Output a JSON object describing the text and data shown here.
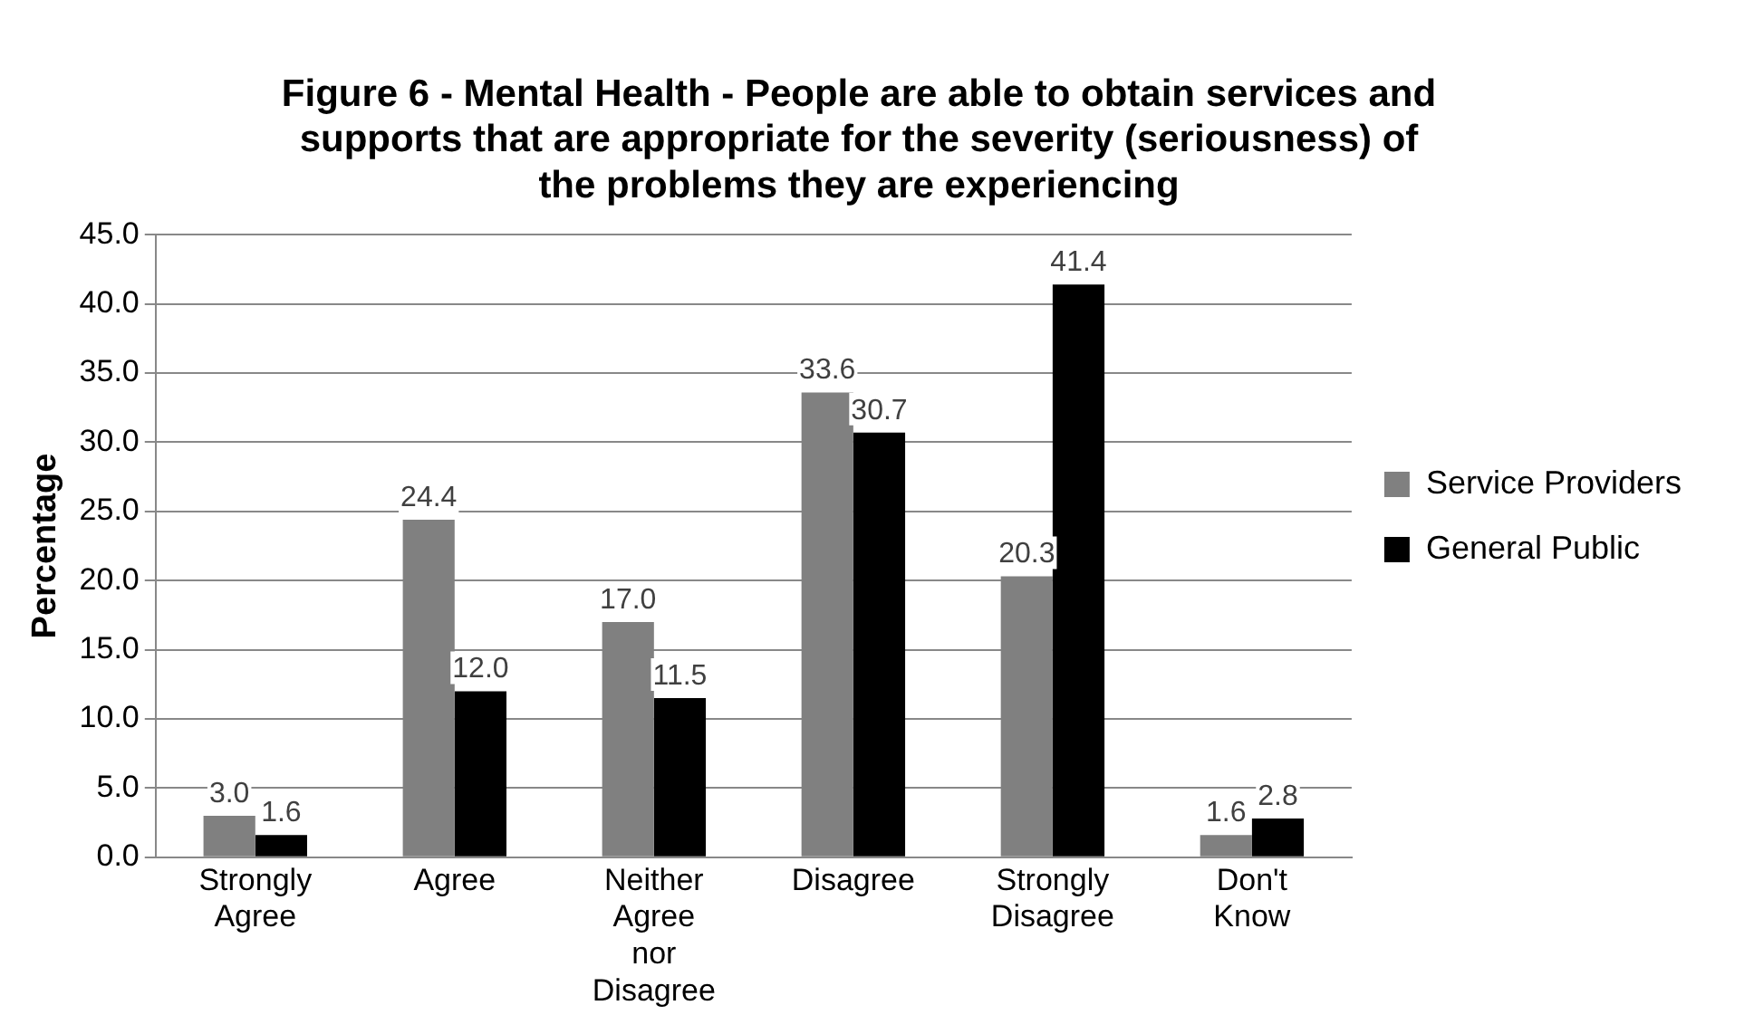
{
  "chart_data": {
    "type": "bar",
    "title": "Figure 6 - Mental Health - People are able to obtain services and supports that are appropriate for the severity (seriousness) of the problems they are experiencing",
    "ylabel": "Percentage",
    "categories": [
      "Strongly Agree",
      "Agree",
      "Neither Agree nor Disagree",
      "Disagree",
      "Strongly Disagree",
      "Don't Know"
    ],
    "series": [
      {
        "name": "Service Providers",
        "color": "#808080",
        "values": [
          3.0,
          24.4,
          17.0,
          33.6,
          20.3,
          1.6
        ],
        "value_labels": [
          "3.0",
          "24.4",
          "17.0",
          "33.6",
          "20.3",
          "1.6"
        ]
      },
      {
        "name": "General Public",
        "color": "#000000",
        "values": [
          1.6,
          12.0,
          11.5,
          30.7,
          41.4,
          2.8
        ],
        "value_labels": [
          "1.6",
          "12.0",
          "11.5",
          "30.7",
          "41.4",
          "2.8"
        ]
      }
    ],
    "ylim": [
      0,
      45
    ],
    "yticks": [
      {
        "value": 0,
        "label": "0.0"
      },
      {
        "value": 5,
        "label": "5.0"
      },
      {
        "value": 10,
        "label": "10.0"
      },
      {
        "value": 15,
        "label": "15.0"
      },
      {
        "value": 20,
        "label": "20.0"
      },
      {
        "value": 25,
        "label": "25.0"
      },
      {
        "value": 30,
        "label": "30.0"
      },
      {
        "value": 35,
        "label": "35.0"
      },
      {
        "value": 40,
        "label": "40.0"
      },
      {
        "value": 45,
        "label": "45.0"
      }
    ],
    "grid": "y",
    "legend": "right"
  }
}
